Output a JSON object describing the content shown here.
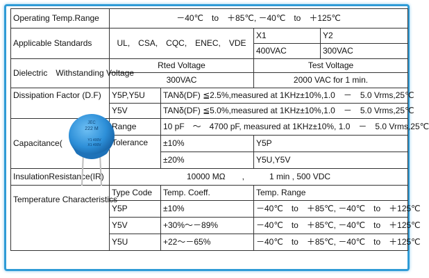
{
  "rows": {
    "operating_temp": {
      "label": "Operating Temp.Range",
      "value": "－40℃　to　＋85℃, －40℃　to　＋125℃"
    },
    "standards": {
      "label": "Applicable Standards",
      "list": "UL,　CSA,　CQC,　ENEC,　VDE",
      "x1": "X1",
      "y2": "Y2",
      "x1_voltage": "400VAC",
      "y2_voltage": "300VAC"
    },
    "dielectric": {
      "label": "Dielectric　Withstanding Voltage",
      "rated_header": "Rted Voltage",
      "test_header": "Test Voltage",
      "rated_value": "300VAC",
      "test_value": "2000 VAC for 1 min."
    },
    "dissipation": {
      "label": "Dissipation Factor (D.F)",
      "y5p_y5u": "Y5P,Y5U",
      "y5p_y5u_value": "TANδ(DF) ≦2.5%,measured at 1KHz±10%,1.0　－　5.0 Vrms,25℃",
      "y5v": "Y5V",
      "y5v_value": "TANδ(DF) ≦5.0%,measured at 1KHz±10%,1.0　－　5.0 Vrms,25℃"
    },
    "capacitance": {
      "label": "Capacitance(",
      "range_label": "Range",
      "range_value": "10 pF　～　4700 pF, measured at 1KHz±10%, 1.0　－　5.0 Vrms,25℃",
      "tolerance_label": "Tolerance",
      "tol1": "±10%",
      "tol1_type": "Y5P",
      "tol2": "±20%",
      "tol2_type": "Y5U,Y5V"
    },
    "insulation": {
      "label": "InsulationResistance(IR)",
      "value": "10000 MΩ　　,　　　1 min , 500 VDC"
    },
    "temperature": {
      "label": "Temperature Characteristics",
      "type_header": "Type Code",
      "coeff_header": "Temp. Coeff.",
      "range_header": "Temp. Range",
      "rows": [
        {
          "code": "Y5P",
          "coeff": "±10%",
          "range": "－40℃　to　＋85℃, －40℃　to　＋125℃"
        },
        {
          "code": "Y5V",
          "coeff": "+30%～－89%",
          "range": "－40℃　to　＋85℃, －40℃　to　＋125℃"
        },
        {
          "code": "Y5U",
          "coeff": "+22～－65%",
          "range": "－40℃　to　＋85℃, －40℃　to　＋125℃"
        }
      ]
    }
  },
  "capacitor_image": {
    "marking_lines": [
      "JEC",
      "222 M",
      "Y1 400V",
      "X1 400V"
    ],
    "body_color": "#2d8fd8",
    "lead_color": "#c0c0c0"
  }
}
